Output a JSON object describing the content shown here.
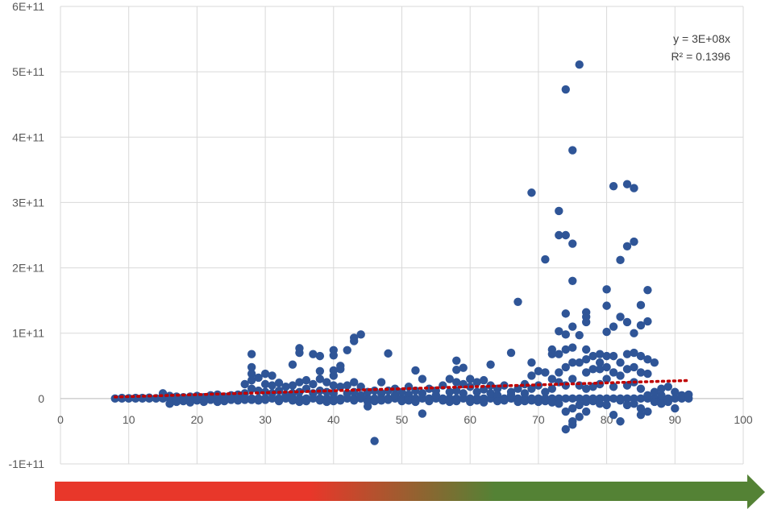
{
  "chart_data": {
    "type": "scatter",
    "title": "",
    "xlabel": "",
    "ylabel": "",
    "xlim": [
      0,
      100
    ],
    "ylim": [
      -100000000000,
      600000000000
    ],
    "x_ticks": [
      0,
      10,
      20,
      30,
      40,
      50,
      60,
      70,
      80,
      90,
      100
    ],
    "x_tick_labels": [
      "0",
      "10",
      "20",
      "30",
      "40",
      "50",
      "60",
      "70",
      "80",
      "90",
      "100"
    ],
    "y_ticks": [
      -100000000000,
      0,
      100000000000,
      200000000000,
      300000000000,
      400000000000,
      500000000000,
      600000000000
    ],
    "y_tick_labels": [
      "-1E+11",
      "0",
      "1E+11",
      "2E+11",
      "3E+11",
      "4E+11",
      "5E+11",
      "6E+11"
    ],
    "grid": true,
    "marker_color": "#2F5597",
    "trendline": {
      "type": "linear-through-origin",
      "slope": 300000000,
      "x_range": [
        8,
        92
      ],
      "color": "#C00000",
      "style": "dotted",
      "equation": "y = 3E+08x",
      "r_squared": "R² = 0.1396"
    },
    "gradient_arrow": {
      "colors": [
        "#E8372A",
        "#E8372A",
        "#548235",
        "#548235"
      ],
      "direction": "right"
    },
    "points": [
      [
        8,
        0
      ],
      [
        9,
        0
      ],
      [
        10,
        0
      ],
      [
        11,
        0
      ],
      [
        12,
        0
      ],
      [
        13,
        0
      ],
      [
        14,
        0
      ],
      [
        15,
        0
      ],
      [
        16,
        0
      ],
      [
        17,
        0
      ],
      [
        18,
        0
      ],
      [
        19,
        0
      ],
      [
        20,
        0
      ],
      [
        21,
        0
      ],
      [
        22,
        0
      ],
      [
        23,
        0
      ],
      [
        24,
        0
      ],
      [
        25,
        0
      ],
      [
        9,
        1000000000
      ],
      [
        10,
        500000000
      ],
      [
        11,
        1000000000
      ],
      [
        12,
        1000000000
      ],
      [
        13,
        1500000000
      ],
      [
        14,
        500000000
      ],
      [
        15,
        8000000000
      ],
      [
        16,
        -8000000000
      ],
      [
        16,
        4000000000
      ],
      [
        17,
        -5000000000
      ],
      [
        17,
        3000000000
      ],
      [
        18,
        2000000000
      ],
      [
        18,
        -4000000000
      ],
      [
        19,
        3000000000
      ],
      [
        19,
        -6000000000
      ],
      [
        20,
        4000000000
      ],
      [
        20,
        -3000000000
      ],
      [
        21,
        2000000000
      ],
      [
        21,
        -5000000000
      ],
      [
        22,
        5000000000
      ],
      [
        22,
        -2000000000
      ],
      [
        23,
        6000000000
      ],
      [
        23,
        -5000000000
      ],
      [
        24,
        3000000000
      ],
      [
        24,
        -4000000000
      ],
      [
        25,
        5000000000
      ],
      [
        25,
        -2000000000
      ],
      [
        26,
        0
      ],
      [
        26,
        6000000000
      ],
      [
        26,
        -3000000000
      ],
      [
        27,
        0
      ],
      [
        27,
        22000000000
      ],
      [
        27,
        8000000000
      ],
      [
        27,
        -2000000000
      ],
      [
        28,
        0
      ],
      [
        28,
        68000000000
      ],
      [
        28,
        48000000000
      ],
      [
        28,
        38000000000
      ],
      [
        28,
        28000000000
      ],
      [
        28,
        15000000000
      ],
      [
        28,
        -2000000000
      ],
      [
        29,
        0
      ],
      [
        29,
        32000000000
      ],
      [
        29,
        12000000000
      ],
      [
        29,
        -3000000000
      ],
      [
        30,
        0
      ],
      [
        30,
        38000000000
      ],
      [
        30,
        22000000000
      ],
      [
        30,
        10000000000
      ],
      [
        30,
        -2000000000
      ],
      [
        31,
        0
      ],
      [
        31,
        35000000000
      ],
      [
        31,
        20000000000
      ],
      [
        31,
        8000000000
      ],
      [
        32,
        0
      ],
      [
        32,
        24000000000
      ],
      [
        32,
        12000000000
      ],
      [
        32,
        -4000000000
      ],
      [
        33,
        0
      ],
      [
        33,
        18000000000
      ],
      [
        33,
        6000000000
      ],
      [
        34,
        0
      ],
      [
        34,
        52000000000
      ],
      [
        34,
        20000000000
      ],
      [
        34,
        8000000000
      ],
      [
        34,
        -3000000000
      ],
      [
        35,
        0
      ],
      [
        35,
        77000000000
      ],
      [
        35,
        70000000000
      ],
      [
        35,
        25000000000
      ],
      [
        35,
        10000000000
      ],
      [
        35,
        -5000000000
      ],
      [
        36,
        0
      ],
      [
        36,
        28000000000
      ],
      [
        36,
        15000000000
      ],
      [
        36,
        -4000000000
      ],
      [
        37,
        0
      ],
      [
        37,
        68000000000
      ],
      [
        37,
        22000000000
      ],
      [
        37,
        8000000000
      ],
      [
        38,
        0
      ],
      [
        38,
        65000000000
      ],
      [
        38,
        42000000000
      ],
      [
        38,
        30000000000
      ],
      [
        38,
        12000000000
      ],
      [
        38,
        -3000000000
      ],
      [
        39,
        0
      ],
      [
        39,
        25000000000
      ],
      [
        39,
        10000000000
      ],
      [
        39,
        -5000000000
      ],
      [
        40,
        0
      ],
      [
        40,
        74000000000
      ],
      [
        40,
        66000000000
      ],
      [
        40,
        43000000000
      ],
      [
        40,
        35000000000
      ],
      [
        40,
        20000000000
      ],
      [
        40,
        8000000000
      ],
      [
        40,
        -4000000000
      ],
      [
        41,
        0
      ],
      [
        41,
        50000000000
      ],
      [
        41,
        45000000000
      ],
      [
        41,
        18000000000
      ],
      [
        41,
        -3000000000
      ],
      [
        42,
        0
      ],
      [
        42,
        74000000000
      ],
      [
        42,
        20000000000
      ],
      [
        42,
        8000000000
      ],
      [
        43,
        0
      ],
      [
        43,
        93000000000
      ],
      [
        43,
        88000000000
      ],
      [
        43,
        25000000000
      ],
      [
        43,
        10000000000
      ],
      [
        43,
        -3000000000
      ],
      [
        44,
        0
      ],
      [
        44,
        98000000000
      ],
      [
        44,
        18000000000
      ],
      [
        44,
        5000000000
      ],
      [
        45,
        0
      ],
      [
        45,
        10000000000
      ],
      [
        45,
        -12000000000
      ],
      [
        45,
        -5000000000
      ],
      [
        46,
        0
      ],
      [
        46,
        -65000000000
      ],
      [
        46,
        12000000000
      ],
      [
        46,
        -4000000000
      ],
      [
        47,
        0
      ],
      [
        47,
        25000000000
      ],
      [
        47,
        8000000000
      ],
      [
        47,
        -3000000000
      ],
      [
        48,
        0
      ],
      [
        48,
        69000000000
      ],
      [
        48,
        12000000000
      ],
      [
        48,
        -2000000000
      ],
      [
        49,
        0
      ],
      [
        49,
        15000000000
      ],
      [
        49,
        5000000000
      ],
      [
        50,
        0
      ],
      [
        50,
        10000000000
      ],
      [
        50,
        -4000000000
      ],
      [
        51,
        0
      ],
      [
        51,
        18000000000
      ],
      [
        51,
        6000000000
      ],
      [
        51,
        -3000000000
      ],
      [
        52,
        0
      ],
      [
        52,
        43000000000
      ],
      [
        52,
        12000000000
      ],
      [
        52,
        -5000000000
      ],
      [
        53,
        0
      ],
      [
        53,
        30000000000
      ],
      [
        53,
        -23000000000
      ],
      [
        53,
        8000000000
      ],
      [
        54,
        0
      ],
      [
        54,
        15000000000
      ],
      [
        54,
        -4000000000
      ],
      [
        55,
        0
      ],
      [
        55,
        12000000000
      ],
      [
        55,
        5000000000
      ],
      [
        56,
        0
      ],
      [
        56,
        20000000000
      ],
      [
        56,
        -3000000000
      ],
      [
        57,
        0
      ],
      [
        57,
        30000000000
      ],
      [
        57,
        10000000000
      ],
      [
        57,
        -5000000000
      ],
      [
        58,
        0
      ],
      [
        58,
        58000000000
      ],
      [
        58,
        44000000000
      ],
      [
        58,
        25000000000
      ],
      [
        58,
        12000000000
      ],
      [
        58,
        -4000000000
      ],
      [
        59,
        0
      ],
      [
        59,
        47000000000
      ],
      [
        59,
        22000000000
      ],
      [
        59,
        8000000000
      ],
      [
        60,
        0
      ],
      [
        60,
        18000000000
      ],
      [
        60,
        30000000000
      ],
      [
        60,
        -5000000000
      ],
      [
        61,
        0
      ],
      [
        61,
        25000000000
      ],
      [
        61,
        10000000000
      ],
      [
        61,
        -3000000000
      ],
      [
        62,
        0
      ],
      [
        62,
        28000000000
      ],
      [
        62,
        14000000000
      ],
      [
        62,
        -6000000000
      ],
      [
        63,
        0
      ],
      [
        63,
        52000000000
      ],
      [
        63,
        20000000000
      ],
      [
        63,
        8000000000
      ],
      [
        64,
        0
      ],
      [
        64,
        15000000000
      ],
      [
        64,
        5000000000
      ],
      [
        64,
        -4000000000
      ],
      [
        65,
        0
      ],
      [
        65,
        20000000000
      ],
      [
        65,
        -3000000000
      ],
      [
        66,
        0
      ],
      [
        66,
        70000000000
      ],
      [
        66,
        10000000000
      ],
      [
        66,
        5000000000
      ],
      [
        67,
        0
      ],
      [
        67,
        148000000000
      ],
      [
        67,
        15000000000
      ],
      [
        67,
        -5000000000
      ],
      [
        68,
        0
      ],
      [
        68,
        22000000000
      ],
      [
        68,
        8000000000
      ],
      [
        68,
        -4000000000
      ],
      [
        69,
        0
      ],
      [
        69,
        315000000000
      ],
      [
        69,
        55000000000
      ],
      [
        69,
        35000000000
      ],
      [
        69,
        15000000000
      ],
      [
        69,
        -3000000000
      ],
      [
        70,
        0
      ],
      [
        70,
        42000000000
      ],
      [
        70,
        20000000000
      ],
      [
        70,
        -5000000000
      ],
      [
        71,
        0
      ],
      [
        71,
        213000000000
      ],
      [
        71,
        40000000000
      ],
      [
        71,
        10000000000
      ],
      [
        71,
        -4000000000
      ],
      [
        72,
        0
      ],
      [
        72,
        75000000000
      ],
      [
        72,
        68000000000
      ],
      [
        72,
        30000000000
      ],
      [
        72,
        15000000000
      ],
      [
        72,
        -6000000000
      ],
      [
        73,
        0
      ],
      [
        73,
        287000000000
      ],
      [
        73,
        250000000000
      ],
      [
        73,
        103000000000
      ],
      [
        73,
        68000000000
      ],
      [
        73,
        40000000000
      ],
      [
        73,
        25000000000
      ],
      [
        73,
        -8000000000
      ],
      [
        74,
        0
      ],
      [
        74,
        473000000000
      ],
      [
        74,
        250000000000
      ],
      [
        74,
        130000000000
      ],
      [
        74,
        98000000000
      ],
      [
        74,
        75000000000
      ],
      [
        74,
        48000000000
      ],
      [
        74,
        20000000000
      ],
      [
        74,
        -20000000000
      ],
      [
        74,
        -47000000000
      ],
      [
        75,
        0
      ],
      [
        75,
        380000000000
      ],
      [
        75,
        237000000000
      ],
      [
        75,
        180000000000
      ],
      [
        75,
        110000000000
      ],
      [
        75,
        78000000000
      ],
      [
        75,
        55000000000
      ],
      [
        75,
        30000000000
      ],
      [
        75,
        -15000000000
      ],
      [
        75,
        -35000000000
      ],
      [
        75,
        -40000000000
      ],
      [
        76,
        0
      ],
      [
        76,
        511000000000
      ],
      [
        76,
        97000000000
      ],
      [
        76,
        55000000000
      ],
      [
        76,
        20000000000
      ],
      [
        76,
        -10000000000
      ],
      [
        76,
        -28000000000
      ],
      [
        77,
        0
      ],
      [
        77,
        132000000000
      ],
      [
        77,
        125000000000
      ],
      [
        77,
        117000000000
      ],
      [
        77,
        75000000000
      ],
      [
        77,
        60000000000
      ],
      [
        77,
        40000000000
      ],
      [
        77,
        15000000000
      ],
      [
        77,
        -5000000000
      ],
      [
        77,
        -20000000000
      ],
      [
        78,
        0
      ],
      [
        78,
        65000000000
      ],
      [
        78,
        45000000000
      ],
      [
        78,
        18000000000
      ],
      [
        78,
        -4000000000
      ],
      [
        79,
        0
      ],
      [
        79,
        68000000000
      ],
      [
        79,
        55000000000
      ],
      [
        79,
        45000000000
      ],
      [
        79,
        22000000000
      ],
      [
        79,
        -8000000000
      ],
      [
        80,
        0
      ],
      [
        80,
        167000000000
      ],
      [
        80,
        142000000000
      ],
      [
        80,
        102000000000
      ],
      [
        80,
        65000000000
      ],
      [
        80,
        48000000000
      ],
      [
        80,
        30000000000
      ],
      [
        80,
        -10000000000
      ],
      [
        81,
        0
      ],
      [
        81,
        325000000000
      ],
      [
        81,
        110000000000
      ],
      [
        81,
        65000000000
      ],
      [
        81,
        40000000000
      ],
      [
        81,
        18000000000
      ],
      [
        81,
        -25000000000
      ],
      [
        82,
        0
      ],
      [
        82,
        212000000000
      ],
      [
        82,
        125000000000
      ],
      [
        82,
        55000000000
      ],
      [
        82,
        35000000000
      ],
      [
        82,
        -3000000000
      ],
      [
        82,
        -35000000000
      ],
      [
        83,
        0
      ],
      [
        83,
        328000000000
      ],
      [
        83,
        233000000000
      ],
      [
        83,
        117000000000
      ],
      [
        83,
        68000000000
      ],
      [
        83,
        45000000000
      ],
      [
        83,
        20000000000
      ],
      [
        83,
        -10000000000
      ],
      [
        84,
        0
      ],
      [
        84,
        322000000000
      ],
      [
        84,
        240000000000
      ],
      [
        84,
        100000000000
      ],
      [
        84,
        70000000000
      ],
      [
        84,
        48000000000
      ],
      [
        84,
        25000000000
      ],
      [
        84,
        -8000000000
      ],
      [
        85,
        0
      ],
      [
        85,
        143000000000
      ],
      [
        85,
        112000000000
      ],
      [
        85,
        65000000000
      ],
      [
        85,
        40000000000
      ],
      [
        85,
        15000000000
      ],
      [
        85,
        -15000000000
      ],
      [
        85,
        -25000000000
      ],
      [
        86,
        0
      ],
      [
        86,
        166000000000
      ],
      [
        86,
        118000000000
      ],
      [
        86,
        60000000000
      ],
      [
        86,
        38000000000
      ],
      [
        86,
        5000000000
      ],
      [
        86,
        -20000000000
      ],
      [
        87,
        0
      ],
      [
        87,
        55000000000
      ],
      [
        87,
        10000000000
      ],
      [
        87,
        -5000000000
      ],
      [
        88,
        0
      ],
      [
        88,
        15000000000
      ],
      [
        88,
        5000000000
      ],
      [
        88,
        -8000000000
      ],
      [
        89,
        0
      ],
      [
        89,
        18000000000
      ],
      [
        89,
        -5000000000
      ],
      [
        90,
        0
      ],
      [
        90,
        10000000000
      ],
      [
        90,
        -15000000000
      ],
      [
        91,
        0
      ],
      [
        91,
        5000000000
      ],
      [
        92,
        0
      ],
      [
        92,
        6000000000
      ]
    ]
  }
}
